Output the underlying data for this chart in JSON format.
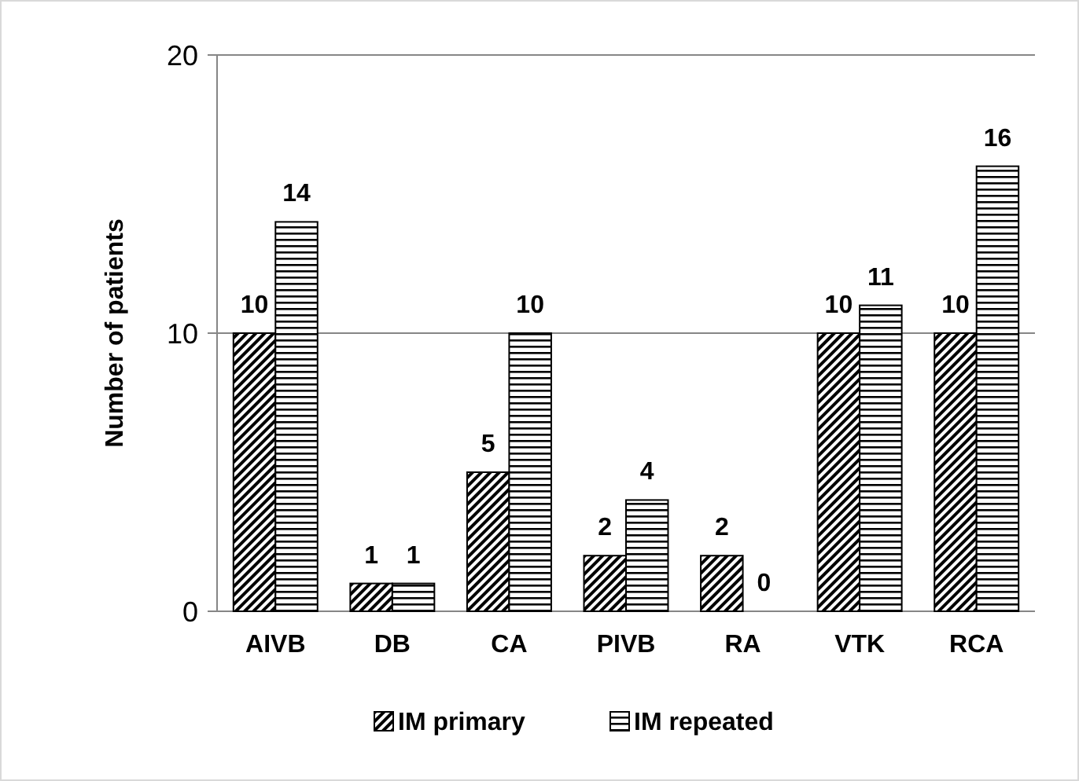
{
  "chart_data": {
    "type": "bar",
    "ylabel": "Number of patients",
    "categories": [
      "AIVB",
      "DB",
      "CA",
      "PIVB",
      "RA",
      "VTK",
      "RCA"
    ],
    "series": [
      {
        "name": "IM primary",
        "color": "#000000",
        "values": [
          10,
          1,
          5,
          2,
          2,
          10,
          10
        ]
      },
      {
        "name": "IM repeated",
        "color": "#000000",
        "values": [
          14,
          1,
          10,
          4,
          0,
          11,
          16
        ]
      }
    ],
    "ylim": [
      0,
      20
    ],
    "yticks": [
      0,
      10,
      20
    ],
    "grid": "y",
    "legend": "bottom",
    "data_labels": true
  }
}
